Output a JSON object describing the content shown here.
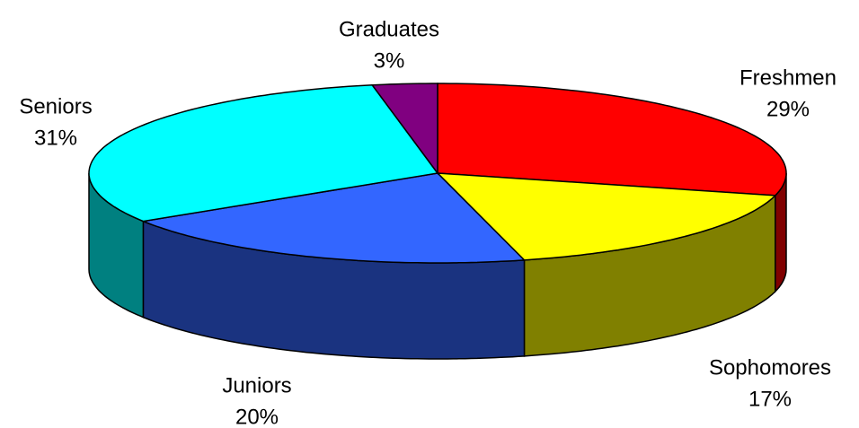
{
  "chart_data": {
    "type": "pie",
    "categories": [
      "Freshmen",
      "Sophomores",
      "Juniors",
      "Seniors",
      "Graduates"
    ],
    "values": [
      29,
      17,
      20,
      31,
      3
    ],
    "value_labels": [
      "29%",
      "17%",
      "20%",
      "31%",
      "3%"
    ],
    "colors": [
      "#ff0000",
      "#ffff00",
      "#3366ff",
      "#00ffff",
      "#800080"
    ]
  }
}
